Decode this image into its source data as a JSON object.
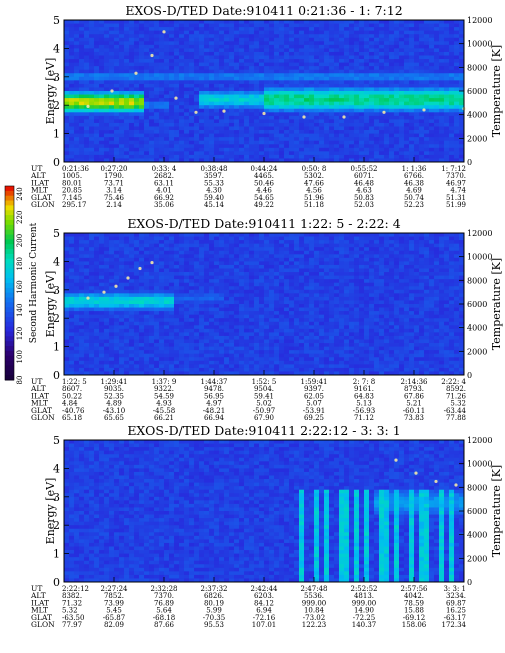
{
  "colorbar": {
    "label": "Second Harmonic Current",
    "ticks": [
      "240",
      "220",
      "200",
      "180",
      "160",
      "140",
      "120",
      "100",
      "80"
    ]
  },
  "eph_labels": [
    "UT",
    "ALT",
    "ILAT",
    "MLT",
    "GLAT",
    "GLON"
  ],
  "chart_data": [
    {
      "type": "heatmap",
      "title": "EXOS-D/TED   Date:910411   0:21:36 - 1: 7:12",
      "ylabel": "Energy [eV]",
      "y2label": "Temperature [K]",
      "ylim": [
        0,
        5
      ],
      "y_ticks": [
        "0",
        "1",
        "2",
        "3",
        "4",
        "5"
      ],
      "y2lim": [
        0,
        12000
      ],
      "y2_ticks": [
        "0",
        "2000",
        "4000",
        "6000",
        "8000",
        "10000",
        "12000"
      ],
      "ephemeris": [
        [
          "0:21:36",
          "1005.",
          "80.01",
          "20.85",
          "7.145",
          "295.17"
        ],
        [
          "0:27:20",
          "1790.",
          "73.71",
          "3.14",
          "75.46",
          "2.14"
        ],
        [
          "0:33: 4",
          "2682.",
          "63.11",
          "4.01",
          "66.92",
          "35.06"
        ],
        [
          "0:38:48",
          "3597.",
          "55.33",
          "4.30",
          "59.40",
          "45.14"
        ],
        [
          "0:44:24",
          "4465.",
          "50.46",
          "4.46",
          "54.65",
          "49.22"
        ],
        [
          "0:50: 8",
          "5302.",
          "47.66",
          "4.56",
          "51.96",
          "51.18"
        ],
        [
          "0:55:52",
          "6071.",
          "46.48",
          "4.63",
          "50.83",
          "52.03"
        ],
        [
          "1: 1:36",
          "6766.",
          "46.38",
          "4.69",
          "50.74",
          "52.23"
        ],
        [
          "1: 7:12",
          "7370.",
          "46.97",
          "4.74",
          "51.31",
          "51.99"
        ]
      ],
      "bands": [
        {
          "t0": 0.0,
          "t1": 0.2,
          "e": 2.1,
          "w": 0.55,
          "v": 0.92
        },
        {
          "t0": 0.2,
          "t1": 0.26,
          "e": 2.0,
          "w": 0.3,
          "v": 0.45
        },
        {
          "t0": 0.34,
          "t1": 0.5,
          "e": 2.2,
          "w": 0.55,
          "v": 0.62
        },
        {
          "t0": 0.5,
          "t1": 1.0,
          "e": 2.2,
          "w": 0.7,
          "v": 0.72
        },
        {
          "t0": 0.0,
          "t1": 1.0,
          "e": 3.0,
          "w": 0.4,
          "v": 0.45
        }
      ],
      "temperature": [
        [
          0.06,
          4700
        ],
        [
          0.12,
          6000
        ],
        [
          0.18,
          7500
        ],
        [
          0.22,
          9000
        ],
        [
          0.25,
          11000
        ],
        [
          0.28,
          5400
        ],
        [
          0.33,
          4200
        ],
        [
          0.4,
          4300
        ],
        [
          0.5,
          4100
        ],
        [
          0.6,
          3800
        ],
        [
          0.7,
          3800
        ],
        [
          0.8,
          4200
        ],
        [
          0.9,
          4400
        ],
        [
          1.0,
          4500
        ]
      ]
    },
    {
      "type": "heatmap",
      "title": "EXOS-D/TED   Date:910411   1:22: 5 - 2:22: 4",
      "ylabel": "Energy [eV]",
      "y2label": "Temperature [K]",
      "ylim": [
        0,
        5
      ],
      "y_ticks": [
        "0",
        "1",
        "2",
        "3",
        "4",
        "5"
      ],
      "y2lim": [
        0,
        12000
      ],
      "y2_ticks": [
        "0",
        "2000",
        "4000",
        "6000",
        "8000",
        "10000",
        "12000"
      ],
      "ephemeris": [
        [
          "1:22: 5",
          "8607.",
          "50.22",
          "4.84",
          "-40.76",
          "65.18"
        ],
        [
          "1:29:41",
          "9035.",
          "52.35",
          "4.89",
          "-43.10",
          "65.65"
        ],
        [
          "1:37: 9",
          "9322.",
          "54.59",
          "4.93",
          "-45.58",
          "66.21"
        ],
        [
          "1:44:37",
          "9478.",
          "56.95",
          "4.97",
          "-48.21",
          "66.94"
        ],
        [
          "1:52: 5",
          "9504.",
          "59.41",
          "5.02",
          "-50.97",
          "67.90"
        ],
        [
          "1:59:41",
          "9397.",
          "62.05",
          "5.07",
          "-53.91",
          "69.25"
        ],
        [
          "2: 7: 8",
          "9161.",
          "64.83",
          "5.13",
          "-56.93",
          "71.12"
        ],
        [
          "2:14:36",
          "8793.",
          "67.86",
          "5.21",
          "-60.11",
          "73.83"
        ],
        [
          "2:22: 4",
          "8592.",
          "71.26",
          "5.32",
          "-63.44",
          "77.88"
        ]
      ],
      "bands": [
        {
          "t0": 0.0,
          "t1": 0.28,
          "e": 2.6,
          "w": 0.55,
          "v": 0.62
        },
        {
          "t0": 0.28,
          "t1": 0.4,
          "e": 2.7,
          "w": 0.45,
          "v": 0.4
        }
      ],
      "temperature": [
        [
          0.06,
          6500
        ],
        [
          0.1,
          7000
        ],
        [
          0.13,
          7500
        ],
        [
          0.16,
          8200
        ],
        [
          0.19,
          9000
        ],
        [
          0.22,
          9500
        ]
      ]
    },
    {
      "type": "heatmap",
      "title": "EXOS-D/TED   Date:910411   2:22:12 - 3: 3: 1",
      "ylabel": "Energy [eV]",
      "y2label": "Temperature [K]",
      "ylim": [
        0,
        5
      ],
      "y_ticks": [
        "0",
        "1",
        "2",
        "3",
        "4",
        "5"
      ],
      "y2lim": [
        0,
        12000
      ],
      "y2_ticks": [
        "0",
        "2000",
        "4000",
        "6000",
        "8000",
        "10000",
        "12000"
      ],
      "ephemeris": [
        [
          "2:22:12",
          "8382.",
          "71.32",
          "5.32",
          "-63.50",
          "77.97"
        ],
        [
          "2:27:24",
          "7852.",
          "73.99",
          "5.45",
          "-65.87",
          "82.09"
        ],
        [
          "2:32:28",
          "7370.",
          "76.89",
          "5.64",
          "-68.18",
          "87.66"
        ],
        [
          "2:37:32",
          "6826.",
          "80.19",
          "5.99",
          "-70.35",
          "95.53"
        ],
        [
          "2:42:44",
          "6203.",
          "84.12",
          "6.94",
          "-72.16",
          "107.01"
        ],
        [
          "2:47:48",
          "5536.",
          "999.00",
          "10.84",
          "-73.02",
          "122.23"
        ],
        [
          "2:52:52",
          "4813.",
          "999.00",
          "14.90",
          "-72.25",
          "140.37"
        ],
        [
          "2:57:56",
          "4042.",
          "78.59",
          "15.88",
          "-69.12",
          "158.06"
        ],
        [
          "3: 3: 1",
          "3234.",
          "69.87",
          "16.25",
          "-63.17",
          "172.34"
        ]
      ],
      "bands": [
        {
          "t0": 0.78,
          "t1": 1.0,
          "e": 2.8,
          "w": 0.9,
          "v": 0.5
        }
      ],
      "spikes": [
        0.59,
        0.63,
        0.66,
        0.7,
        0.73,
        0.76,
        0.8,
        0.83,
        0.87,
        0.9,
        0.94,
        0.97
      ],
      "temperature": [
        [
          0.83,
          10300
        ],
        [
          0.88,
          9200
        ],
        [
          0.93,
          8500
        ],
        [
          0.98,
          8200
        ]
      ]
    }
  ]
}
